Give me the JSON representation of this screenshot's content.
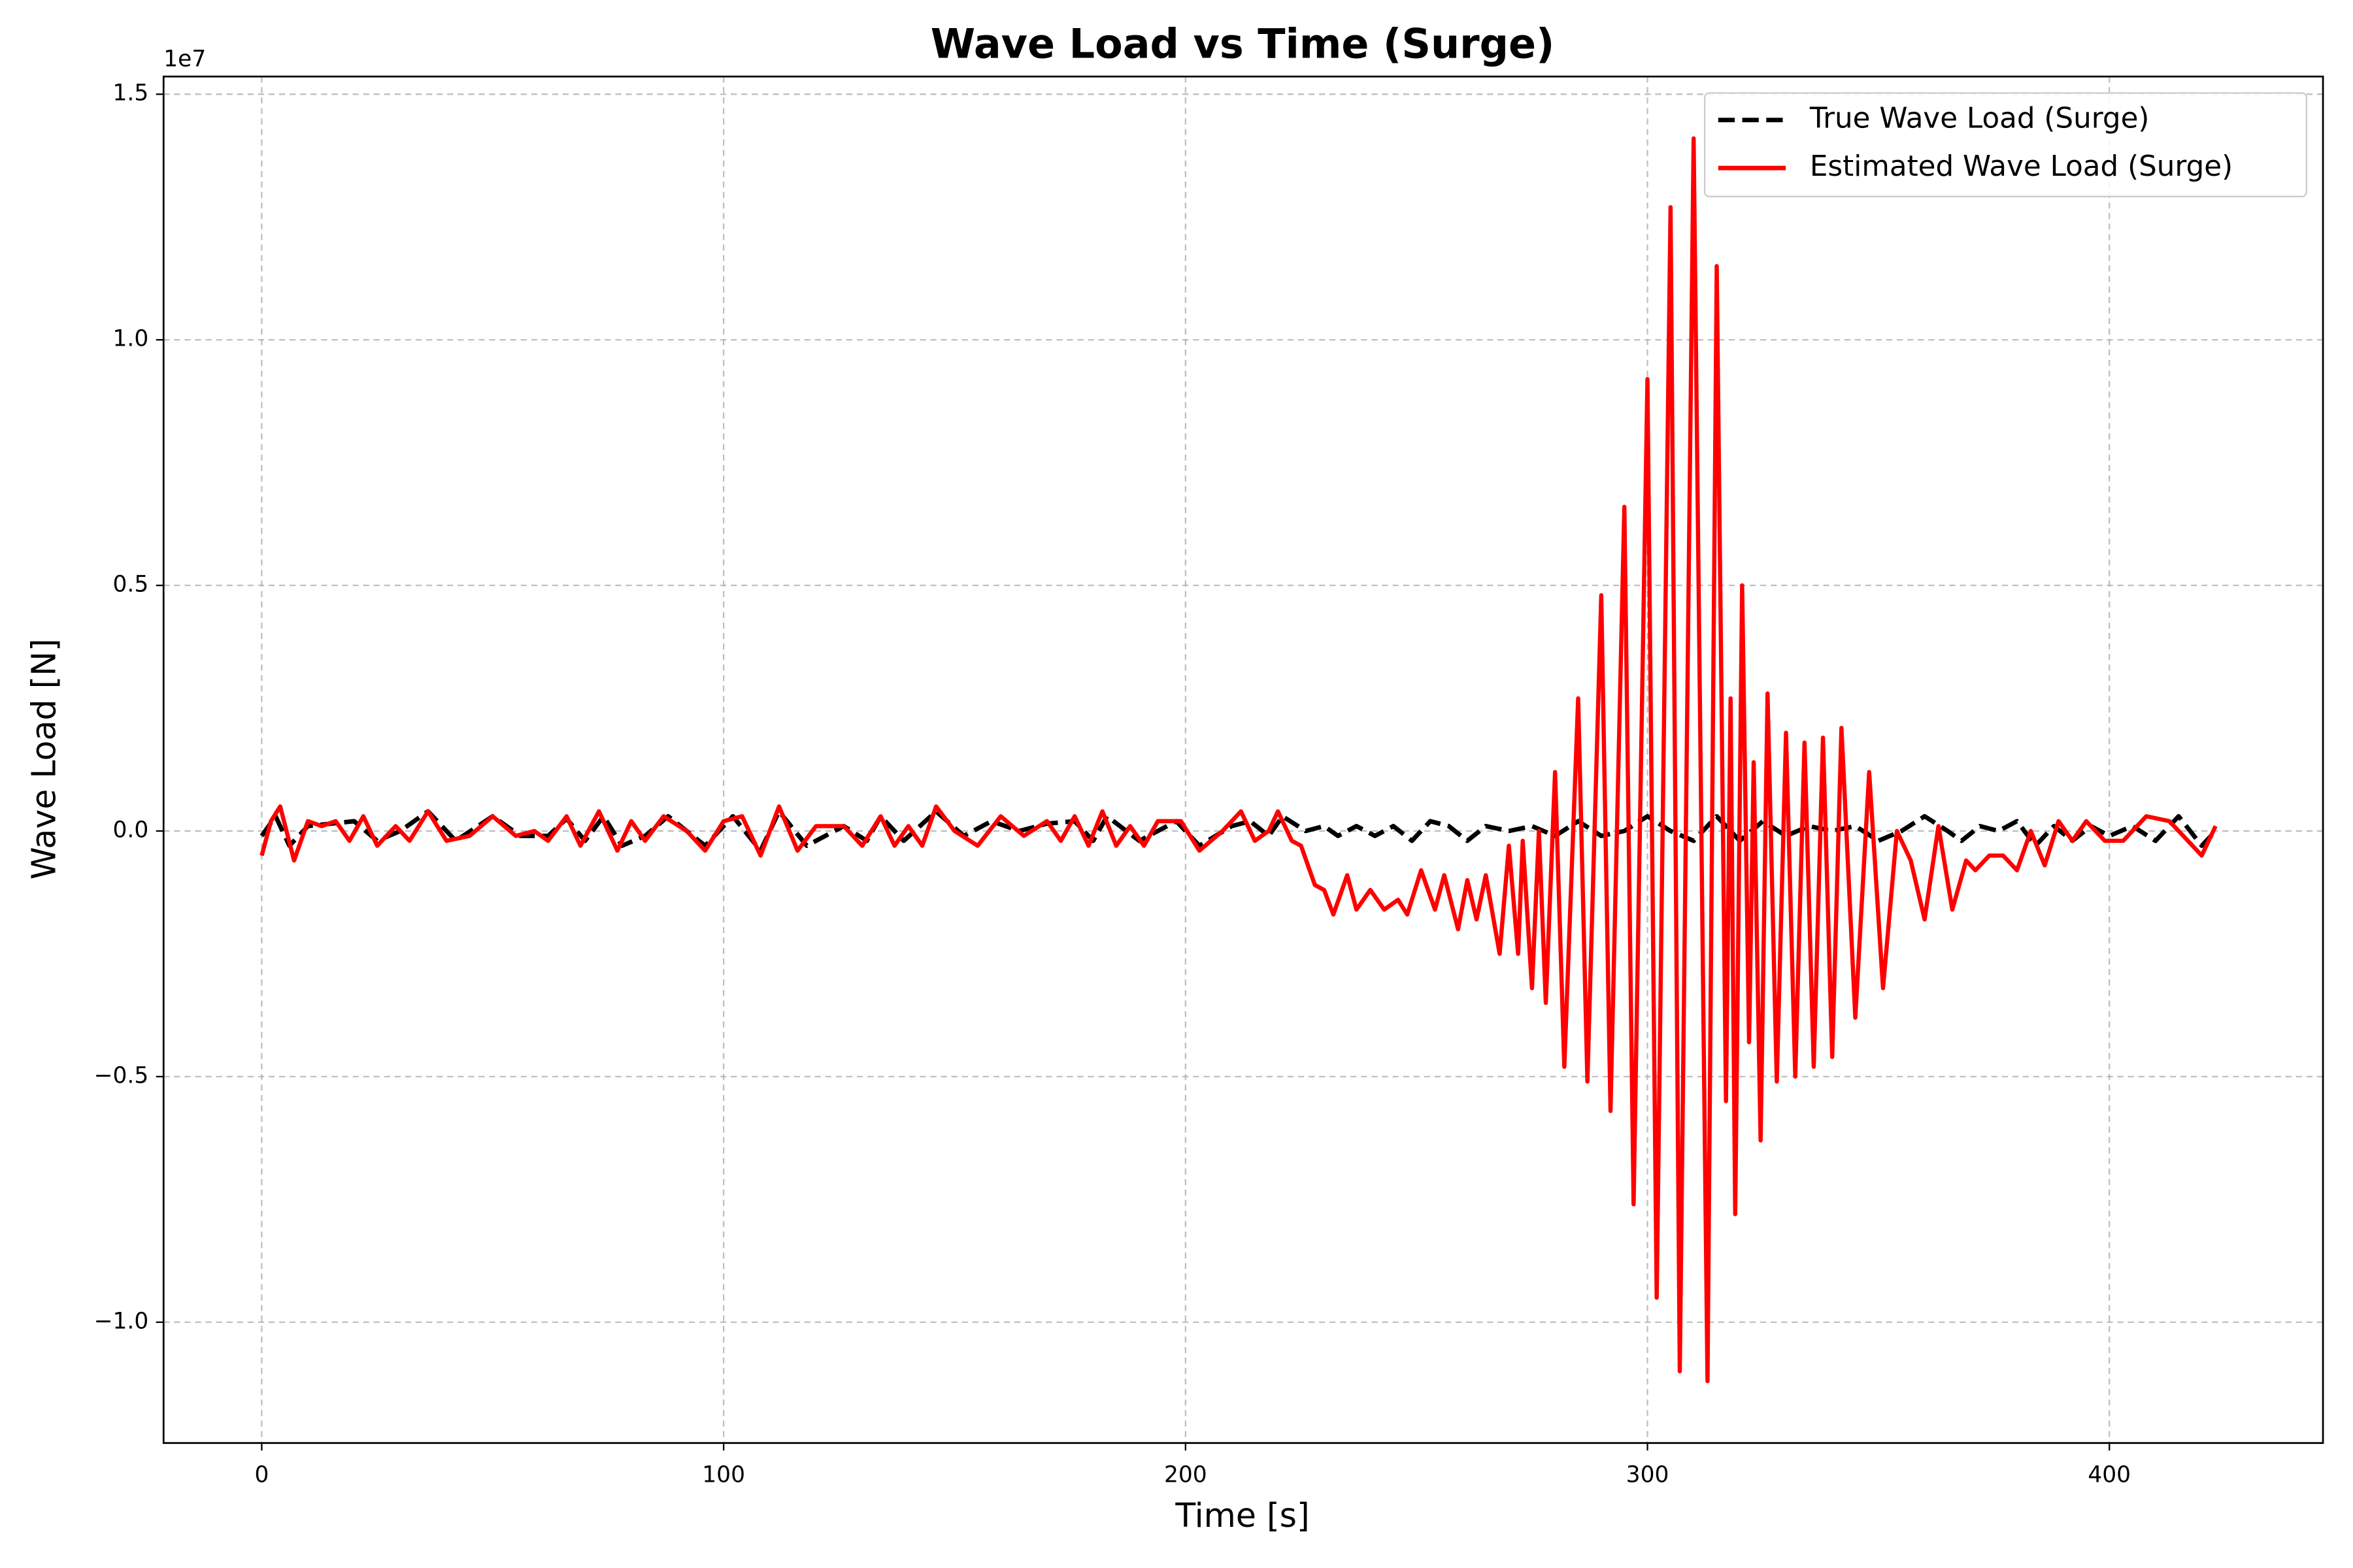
{
  "chart_data": {
    "type": "line",
    "title": "Wave Load vs Time (Surge)",
    "x_label": "Time [s]",
    "y_label": "Wave Load [N]",
    "y_offset_label": "1e7",
    "xlim": [
      -21.25,
      446.25
    ],
    "ylim": [
      -12460000,
      15360000
    ],
    "xticks": [
      0,
      100,
      200,
      300,
      400
    ],
    "yticks": [
      {
        "value": -10000000,
        "label": "−1.0"
      },
      {
        "value": -5000000,
        "label": "−0.5"
      },
      {
        "value": 0,
        "label": "0.0"
      },
      {
        "value": 5000000,
        "label": "0.5"
      },
      {
        "value": 10000000,
        "label": "1.0"
      },
      {
        "value": 15000000,
        "label": "1.5"
      }
    ],
    "grid": true,
    "legend": "upper right",
    "series": [
      {
        "name": "True Wave Load (Surge)",
        "color": "#000000",
        "dash": true,
        "x": [
          0,
          3,
          6,
          10,
          15,
          20,
          25,
          30,
          36,
          42,
          50,
          56,
          62,
          66,
          70,
          74,
          78,
          83,
          88,
          96,
          102,
          108,
          112,
          118,
          126,
          131,
          134,
          139,
          146,
          152,
          158,
          164,
          170,
          176,
          180,
          183,
          190,
          198,
          203,
          210,
          214,
          218,
          221,
          226,
          230,
          233,
          237,
          241,
          245,
          249,
          253,
          257,
          261,
          265,
          270,
          275,
          280,
          285,
          290,
          295,
          300,
          305,
          310,
          315,
          320,
          325,
          330,
          335,
          340,
          345,
          350,
          355,
          360,
          365,
          368,
          372,
          376,
          380,
          384,
          388,
          392,
          396,
          400,
          405,
          410,
          415,
          420,
          423
        ],
        "values": [
          -100000,
          300000,
          -300000,
          100000,
          150000,
          200000,
          -200000,
          0,
          400000,
          -200000,
          300000,
          -100000,
          -100000,
          250000,
          -200000,
          300000,
          -300000,
          -100000,
          300000,
          -300000,
          300000,
          -400000,
          400000,
          -300000,
          100000,
          -200000,
          300000,
          -200000,
          400000,
          -100000,
          200000,
          0,
          150000,
          200000,
          -200000,
          300000,
          -200000,
          200000,
          -300000,
          100000,
          200000,
          -100000,
          300000,
          0,
          100000,
          -100000,
          100000,
          -100000,
          100000,
          -200000,
          200000,
          100000,
          -200000,
          100000,
          0,
          100000,
          -100000,
          200000,
          -100000,
          0,
          300000,
          0,
          -200000,
          300000,
          -200000,
          200000,
          -100000,
          100000,
          0,
          100000,
          -200000,
          0,
          300000,
          0,
          -200000,
          100000,
          0,
          200000,
          -300000,
          100000,
          -200000,
          100000,
          -100000,
          100000,
          -200000,
          300000,
          -300000,
          0
        ]
      },
      {
        "name": "Estimated Wave Load (Surge)",
        "color": "#ff0000",
        "dash": false,
        "x": [
          0,
          2,
          4,
          7,
          10,
          13,
          16,
          19,
          22,
          25,
          29,
          32,
          36,
          40,
          45,
          50,
          55,
          59,
          62,
          66,
          69,
          73,
          77,
          80,
          83,
          87,
          92,
          96,
          100,
          104,
          108,
          112,
          116,
          120,
          126,
          130,
          134,
          137,
          140,
          143,
          146,
          150,
          155,
          160,
          165,
          170,
          173,
          176,
          179,
          182,
          185,
          188,
          191,
          194,
          199,
          203,
          208,
          212,
          215,
          218,
          220,
          223,
          225,
          228,
          230,
          232,
          235,
          237,
          240,
          243,
          246,
          248,
          251,
          254,
          256,
          259,
          261,
          263,
          265,
          268,
          270,
          272,
          273,
          275,
          276.5,
          278,
          280,
          282,
          285,
          287,
          290,
          292,
          295,
          297,
          300,
          302,
          305,
          307,
          310,
          313,
          315,
          317,
          318,
          319,
          320.5,
          322,
          323,
          324.5,
          326,
          328,
          330,
          332,
          334,
          336,
          338,
          340,
          342,
          345,
          348,
          351,
          354,
          357,
          360,
          363,
          366,
          369,
          371,
          374,
          377,
          380,
          383,
          386,
          389,
          392,
          395,
          399,
          403,
          408,
          413,
          417,
          420,
          423
        ],
        "values": [
          -500000,
          200000,
          500000,
          -600000,
          200000,
          100000,
          200000,
          -200000,
          300000,
          -300000,
          100000,
          -200000,
          400000,
          -200000,
          -100000,
          300000,
          -100000,
          0,
          -200000,
          300000,
          -300000,
          400000,
          -400000,
          200000,
          -200000,
          300000,
          0,
          -400000,
          200000,
          300000,
          -500000,
          500000,
          -400000,
          100000,
          100000,
          -300000,
          300000,
          -300000,
          100000,
          -300000,
          500000,
          0,
          -300000,
          300000,
          -100000,
          200000,
          -200000,
          300000,
          -300000,
          400000,
          -300000,
          100000,
          -300000,
          200000,
          200000,
          -400000,
          0,
          400000,
          -200000,
          0,
          400000,
          -200000,
          -300000,
          -1100000,
          -1200000,
          -1700000,
          -900000,
          -1600000,
          -1200000,
          -1600000,
          -1400000,
          -1700000,
          -800000,
          -1600000,
          -900000,
          -2000000,
          -1000000,
          -1800000,
          -900000,
          -2500000,
          -300000,
          -2500000,
          -200000,
          -3200000,
          0,
          -3500000,
          1200000,
          -4800000,
          2700000,
          -5100000,
          4800000,
          -5700000,
          6600000,
          -7600000,
          9200000,
          -9500000,
          12700000,
          -11000000,
          14100000,
          -11200000,
          11500000,
          -5500000,
          2700000,
          -7800000,
          5000000,
          -4300000,
          1400000,
          -6300000,
          2800000,
          -5100000,
          2000000,
          -5000000,
          1800000,
          -4800000,
          1900000,
          -4600000,
          2100000,
          -3800000,
          1200000,
          -3200000,
          0,
          -600000,
          -1800000,
          100000,
          -1600000,
          -600000,
          -800000,
          -500000,
          -500000,
          -800000,
          0,
          -700000,
          200000,
          -200000,
          200000,
          -200000,
          -200000,
          300000,
          200000,
          -200000,
          -500000,
          100000
        ]
      }
    ]
  }
}
